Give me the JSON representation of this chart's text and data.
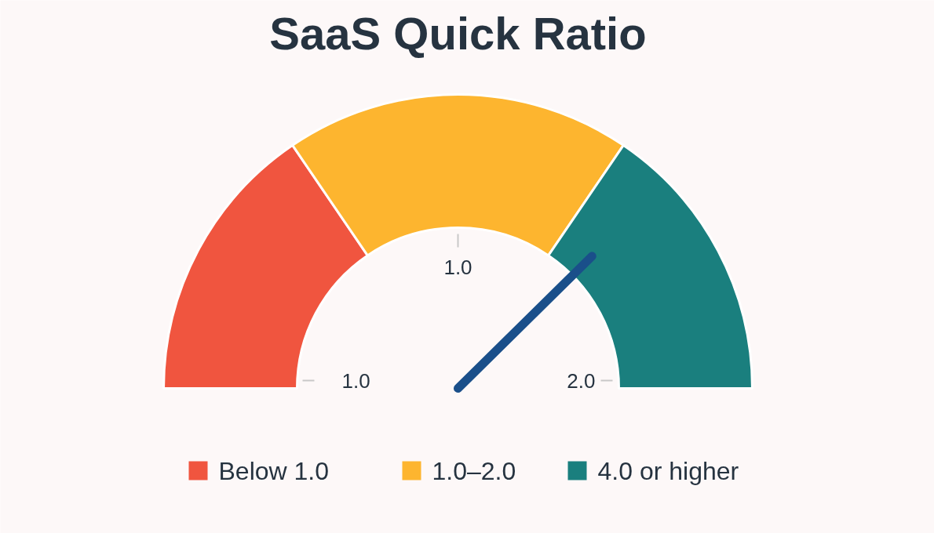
{
  "chart_data": {
    "type": "donut",
    "title": "SaaS Quick Ratio",
    "categories": [
      "Below 1.0",
      "1.0–2.0",
      "4.0 or higher"
    ],
    "values": [
      31,
      38,
      31
    ],
    "colors": [
      "#f0553f",
      "#fdb52f",
      "#1a7f7e"
    ],
    "needle": "4.0 or higher",
    "annotations": [
      "1.0",
      "1.0",
      "2.0"
    ],
    "legend": "bottom"
  }
}
